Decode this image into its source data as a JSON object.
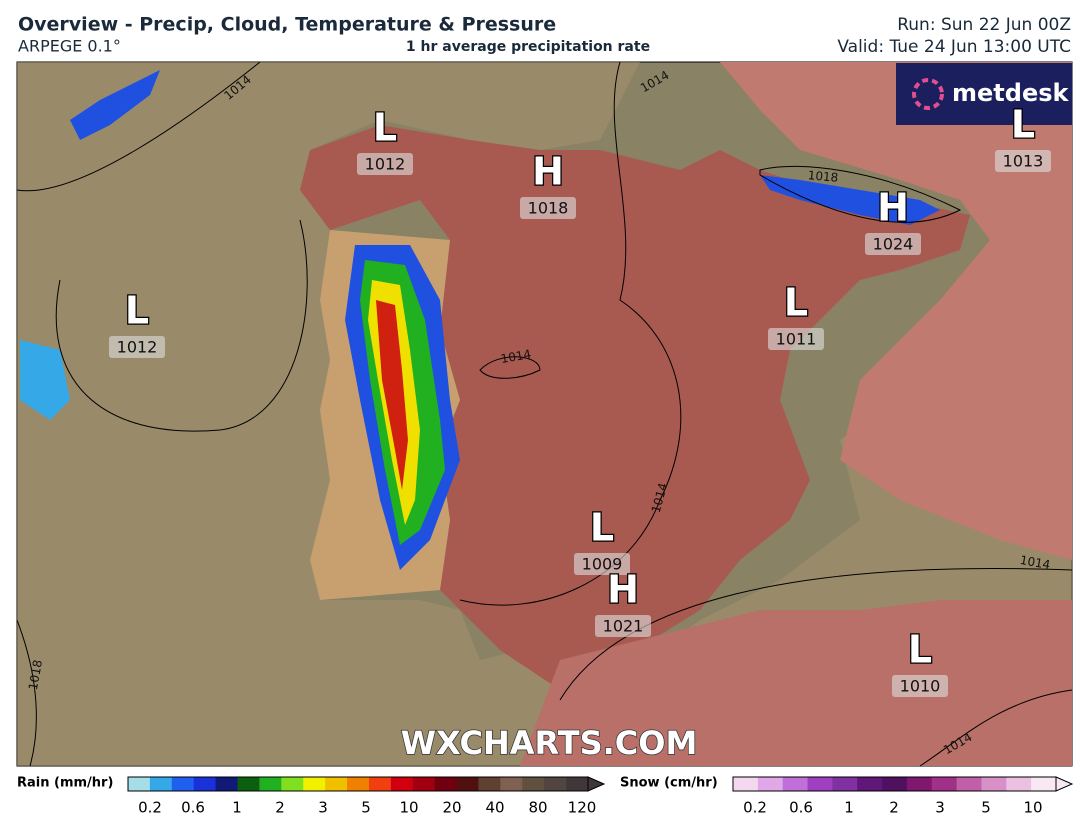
{
  "header": {
    "title": "Overview - Precip, Cloud, Temperature & Pressure",
    "model": "ARPEGE 0.1°",
    "subtitle": "1 hr average precipitation rate",
    "run": "Run: Sun 22 Jun 00Z",
    "valid": "Valid: Tue 24 Jun 13:00 UTC"
  },
  "logo": "metdesk",
  "watermark": "WXCHARTS.COM",
  "pressure_centers": [
    {
      "type": "L",
      "value": 1012
    },
    {
      "type": "H",
      "value": 1018
    },
    {
      "type": "L",
      "value": 1012
    },
    {
      "type": "L",
      "value": 1013
    },
    {
      "type": "H",
      "value": 1024
    },
    {
      "type": "L",
      "value": 1011
    },
    {
      "type": "L",
      "value": 1009
    },
    {
      "type": "H",
      "value": 1021
    },
    {
      "type": "L",
      "value": 1010
    }
  ],
  "isobar_labels": [
    1014,
    1014,
    1014,
    1014,
    1014,
    1014,
    1018,
    1018
  ],
  "rain_legend": {
    "title": "Rain (mm/hr)",
    "labels": [
      0.2,
      0.6,
      1,
      2,
      3,
      5,
      10,
      20,
      40,
      80,
      120
    ],
    "colors": [
      "#a5dde8",
      "#35a8e8",
      "#2060f0",
      "#1a30d8",
      "#101878",
      "#0a6010",
      "#20b020",
      "#80e020",
      "#f0f000",
      "#f0c000",
      "#f08000",
      "#f04010",
      "#d00010",
      "#a00010",
      "#700010",
      "#501010",
      "#604030",
      "#806050",
      "#605040",
      "#504540",
      "#403838"
    ]
  },
  "snow_legend": {
    "title": "Snow (cm/hr)",
    "labels": [
      0.2,
      0.6,
      1,
      2,
      3,
      5,
      10
    ],
    "colors": [
      "#f4d8f0",
      "#e0a8e8",
      "#c070d8",
      "#a040c0",
      "#8030a0",
      "#601878",
      "#501060",
      "#801870",
      "#a03088",
      "#c060a8",
      "#d890c8",
      "#ecc0e0",
      "#f8e8f4"
    ]
  }
}
